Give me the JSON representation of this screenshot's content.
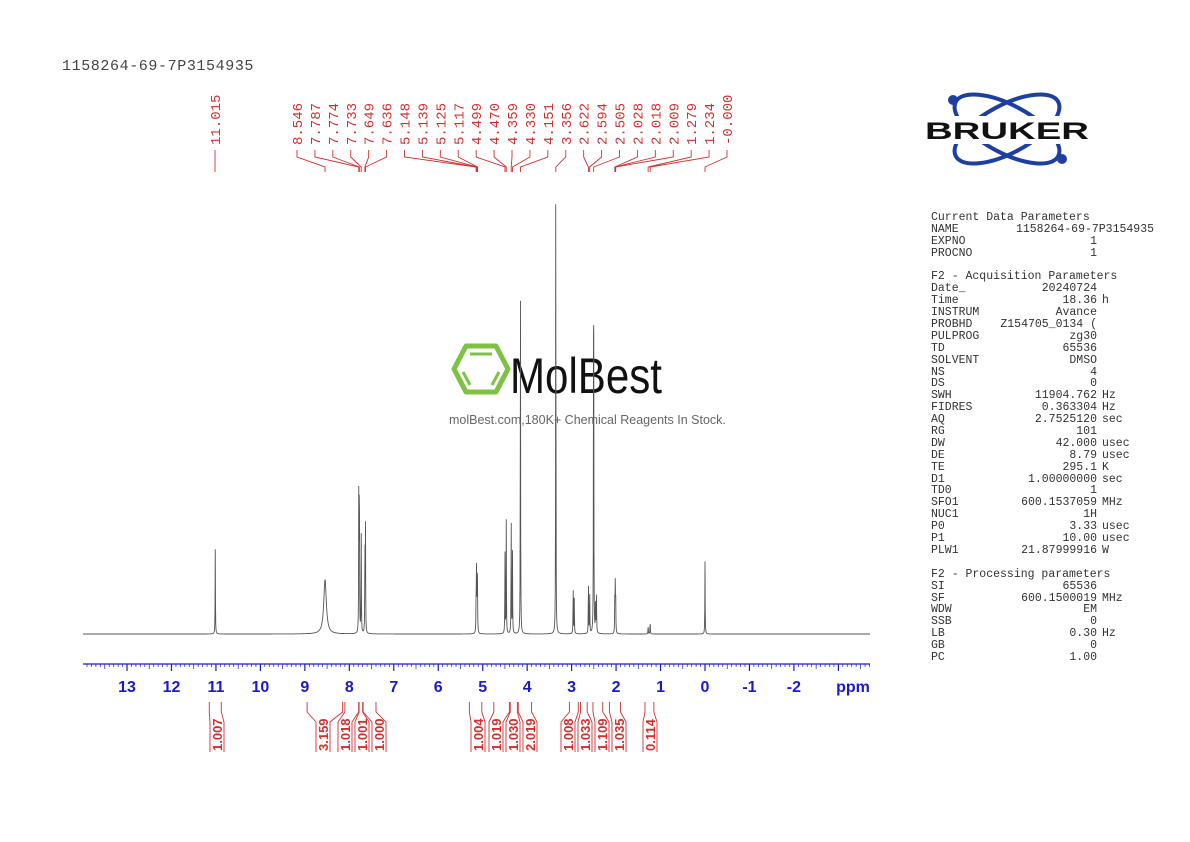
{
  "sample_name": "1158264-69-7P3154935",
  "watermark": {
    "brand": "MolBest",
    "tagline": "molBest.com,180K+ Chemical Reagents In Stock.",
    "color": "#7dc242"
  },
  "logo": {
    "text": "BRUKER",
    "color": "#1f3fa0"
  },
  "colors": {
    "axis": "#1a1acc",
    "annotation": "#d03030",
    "spectrum": "#555555"
  },
  "chart_data": {
    "type": "line",
    "xlabel": "ppm",
    "xlim": [
      14,
      -3.7
    ],
    "x_reversed": true,
    "x_ticks": [
      "13",
      "12",
      "11",
      "10",
      "9",
      "8",
      "7",
      "6",
      "5",
      "4",
      "3",
      "2",
      "1",
      "0",
      "-1",
      "-2"
    ],
    "peaks": [
      {
        "ppm": 11.015,
        "intensity": 19
      },
      {
        "ppm": 8.546,
        "intensity": 12,
        "broad": true
      },
      {
        "ppm": 7.787,
        "intensity": 31
      },
      {
        "ppm": 7.774,
        "intensity": 38
      },
      {
        "ppm": 7.733,
        "intensity": 24
      },
      {
        "ppm": 7.649,
        "intensity": 20
      },
      {
        "ppm": 7.636,
        "intensity": 23
      },
      {
        "ppm": 5.148,
        "intensity": 9
      },
      {
        "ppm": 5.139,
        "intensity": 13
      },
      {
        "ppm": 5.125,
        "intensity": 13
      },
      {
        "ppm": 5.117,
        "intensity": 9
      },
      {
        "ppm": 4.499,
        "intensity": 18
      },
      {
        "ppm": 4.47,
        "intensity": 25
      },
      {
        "ppm": 4.359,
        "intensity": 26
      },
      {
        "ppm": 4.33,
        "intensity": 18
      },
      {
        "ppm": 4.151,
        "intensity": 80
      },
      {
        "ppm": 3.356,
        "intensity": 100
      },
      {
        "ppm": 2.965,
        "intensity": 11
      },
      {
        "ppm": 2.94,
        "intensity": 8
      },
      {
        "ppm": 2.622,
        "intensity": 12
      },
      {
        "ppm": 2.594,
        "intensity": 10
      },
      {
        "ppm": 2.505,
        "intensity": 100
      },
      {
        "ppm": 2.46,
        "intensity": 9
      },
      {
        "ppm": 2.44,
        "intensity": 8
      },
      {
        "ppm": 2.028,
        "intensity": 9
      },
      {
        "ppm": 2.018,
        "intensity": 10
      },
      {
        "ppm": 2.009,
        "intensity": 8
      },
      {
        "ppm": 1.279,
        "intensity": 2
      },
      {
        "ppm": 1.234,
        "intensity": 3
      },
      {
        "ppm": 0.0,
        "intensity": 16
      }
    ],
    "peak_labels": [
      "11.015",
      "8.546",
      "7.787",
      "7.774",
      "7.733",
      "7.649",
      "7.636",
      "5.148",
      "5.139",
      "5.125",
      "5.117",
      "4.499",
      "4.470",
      "4.359",
      "4.330",
      "4.151",
      "3.356",
      "2.622",
      "2.594",
      "2.505",
      "2.028",
      "2.018",
      "2.009",
      "1.279",
      "1.234",
      "-0.000"
    ],
    "integrals": [
      {
        "from": 11.15,
        "to": 10.88,
        "value": "1.007"
      },
      {
        "from": 8.95,
        "to": 8.15,
        "value": "3.159"
      },
      {
        "from": 8.1,
        "to": 7.79,
        "value": "1.018"
      },
      {
        "from": 7.78,
        "to": 7.7,
        "value": "1.001"
      },
      {
        "from": 7.69,
        "to": 7.4,
        "value": "1.000"
      },
      {
        "from": 5.3,
        "to": 5.02,
        "value": "1.004"
      },
      {
        "from": 4.75,
        "to": 4.4,
        "value": "1.019"
      },
      {
        "from": 4.38,
        "to": 4.22,
        "value": "1.030"
      },
      {
        "from": 4.2,
        "to": 3.9,
        "value": "2.019"
      },
      {
        "from": 3.05,
        "to": 2.85,
        "value": "1.008"
      },
      {
        "from": 2.8,
        "to": 2.65,
        "value": "1.033"
      },
      {
        "from": 2.52,
        "to": 2.3,
        "value": "1.109"
      },
      {
        "from": 2.15,
        "to": 1.9,
        "value": "1.035"
      },
      {
        "from": 1.35,
        "to": 1.15,
        "value": "0.114"
      }
    ]
  },
  "parameters": {
    "current_title": "Current Data Parameters",
    "current": [
      {
        "k": "NAME",
        "v": "1158264-69-7P3154935",
        "u": ""
      },
      {
        "k": "EXPNO",
        "v": "1",
        "u": ""
      },
      {
        "k": "PROCNO",
        "v": "1",
        "u": ""
      }
    ],
    "acq_title": "F2 - Acquisition Parameters",
    "acq": [
      {
        "k": "Date_",
        "v": "20240724",
        "u": ""
      },
      {
        "k": "Time",
        "v": "18.36",
        "u": "h"
      },
      {
        "k": "INSTRUM",
        "v": "Avance",
        "u": ""
      },
      {
        "k": "PROBHD",
        "v": "Z154705_0134 (",
        "u": ""
      },
      {
        "k": "PULPROG",
        "v": "zg30",
        "u": ""
      },
      {
        "k": "TD",
        "v": "65536",
        "u": ""
      },
      {
        "k": "SOLVENT",
        "v": "DMSO",
        "u": ""
      },
      {
        "k": "NS",
        "v": "4",
        "u": ""
      },
      {
        "k": "DS",
        "v": "0",
        "u": ""
      },
      {
        "k": "SWH",
        "v": "11904.762",
        "u": "Hz"
      },
      {
        "k": "FIDRES",
        "v": "0.363304",
        "u": "Hz"
      },
      {
        "k": "AQ",
        "v": "2.7525120",
        "u": "sec"
      },
      {
        "k": "RG",
        "v": "101",
        "u": ""
      },
      {
        "k": "DW",
        "v": "42.000",
        "u": "usec"
      },
      {
        "k": "DE",
        "v": "8.79",
        "u": "usec"
      },
      {
        "k": "TE",
        "v": "295.1",
        "u": "K"
      },
      {
        "k": "D1",
        "v": "1.00000000",
        "u": "sec"
      },
      {
        "k": "TD0",
        "v": "1",
        "u": ""
      },
      {
        "k": "SFO1",
        "v": "600.1537059",
        "u": "MHz"
      },
      {
        "k": "NUC1",
        "v": "1H",
        "u": ""
      },
      {
        "k": "P0",
        "v": "3.33",
        "u": "usec"
      },
      {
        "k": "P1",
        "v": "10.00",
        "u": "usec"
      },
      {
        "k": "PLW1",
        "v": "21.87999916",
        "u": "W"
      }
    ],
    "proc_title": "F2 - Processing parameters",
    "proc": [
      {
        "k": "SI",
        "v": "65536",
        "u": ""
      },
      {
        "k": "SF",
        "v": "600.1500019",
        "u": "MHz"
      },
      {
        "k": "WDW",
        "v": "EM",
        "u": ""
      },
      {
        "k": "SSB",
        "v": "0",
        "u": ""
      },
      {
        "k": "LB",
        "v": "0.30",
        "u": "Hz"
      },
      {
        "k": "GB",
        "v": "0",
        "u": ""
      },
      {
        "k": "PC",
        "v": "1.00",
        "u": ""
      }
    ]
  }
}
